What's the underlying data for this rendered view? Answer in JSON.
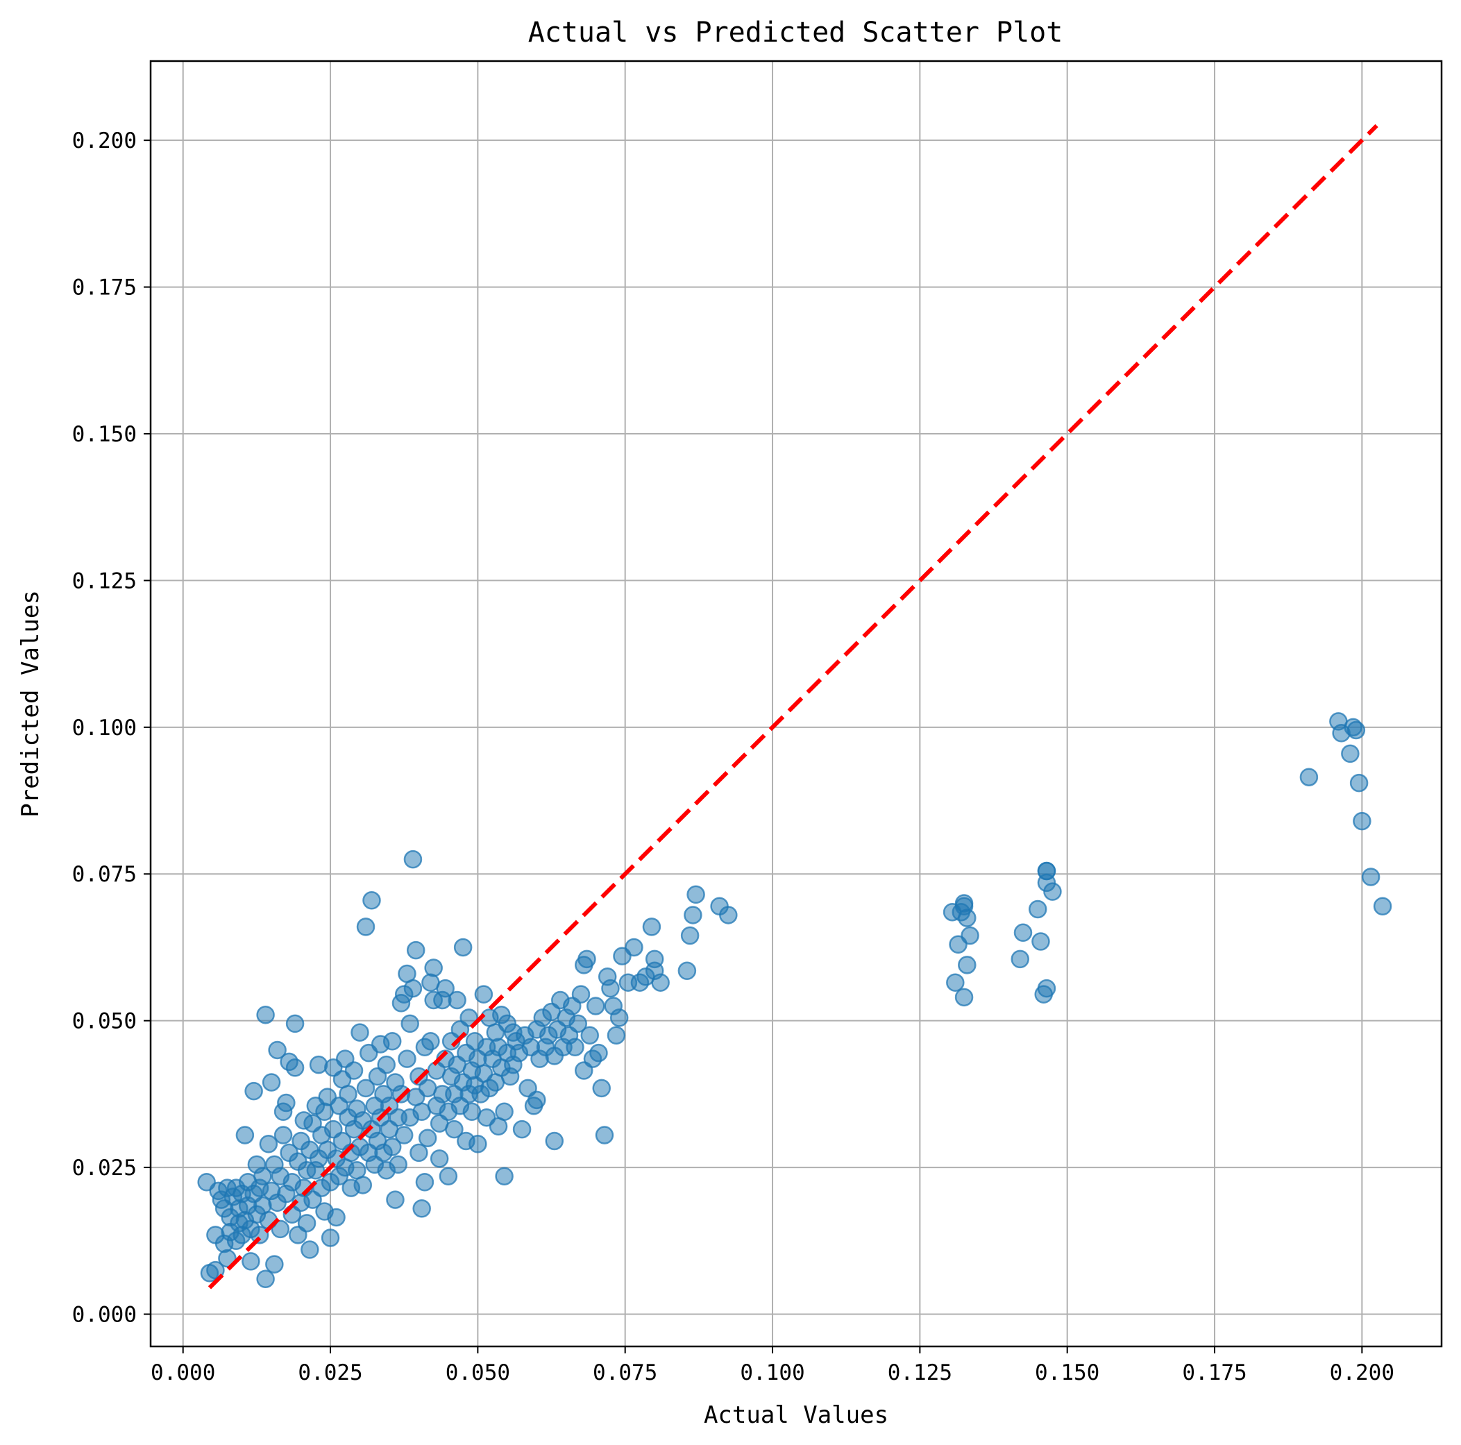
{
  "chart_data": {
    "type": "scatter",
    "title": "Actual vs Predicted Scatter Plot",
    "xlabel": "Actual Values",
    "ylabel": "Predicted Values",
    "xlim": [
      -0.0055,
      0.2135
    ],
    "ylim": [
      -0.0055,
      0.2135
    ],
    "xticks": [
      0.0,
      0.025,
      0.05,
      0.075,
      0.1,
      0.125,
      0.15,
      0.175,
      0.2
    ],
    "yticks": [
      0.0,
      0.025,
      0.05,
      0.075,
      0.1,
      0.125,
      0.15,
      0.175,
      0.2
    ],
    "xtick_labels": [
      "0.000",
      "0.025",
      "0.050",
      "0.075",
      "0.100",
      "0.125",
      "0.150",
      "0.175",
      "0.200"
    ],
    "ytick_labels": [
      "0.000",
      "0.025",
      "0.050",
      "0.075",
      "0.100",
      "0.125",
      "0.150",
      "0.175",
      "0.200"
    ],
    "grid": true,
    "point_color": "#1f77b4",
    "point_alpha": 0.5,
    "reference_line": {
      "x": [
        0.0045,
        0.2025
      ],
      "y": [
        0.0045,
        0.2025
      ],
      "color": "#ff0000",
      "style": "dashed"
    },
    "series": [
      {
        "points": [
          [
            0.004,
            0.0225
          ],
          [
            0.0045,
            0.007
          ],
          [
            0.0055,
            0.0075
          ],
          [
            0.0055,
            0.0135
          ],
          [
            0.006,
            0.021
          ],
          [
            0.0065,
            0.0195
          ],
          [
            0.007,
            0.012
          ],
          [
            0.007,
            0.018
          ],
          [
            0.0075,
            0.0215
          ],
          [
            0.0075,
            0.0095
          ],
          [
            0.008,
            0.014
          ],
          [
            0.008,
            0.0165
          ],
          [
            0.0085,
            0.02
          ],
          [
            0.009,
            0.0125
          ],
          [
            0.009,
            0.0215
          ],
          [
            0.0095,
            0.0155
          ],
          [
            0.0095,
            0.018
          ],
          [
            0.01,
            0.0135
          ],
          [
            0.01,
            0.0205
          ],
          [
            0.0105,
            0.0305
          ],
          [
            0.0105,
            0.016
          ],
          [
            0.011,
            0.0225
          ],
          [
            0.011,
            0.0185
          ],
          [
            0.0115,
            0.0145
          ],
          [
            0.0115,
            0.009
          ],
          [
            0.012,
            0.038
          ],
          [
            0.012,
            0.0205
          ],
          [
            0.0125,
            0.017
          ],
          [
            0.0125,
            0.0255
          ],
          [
            0.013,
            0.0215
          ],
          [
            0.013,
            0.0135
          ],
          [
            0.0135,
            0.0185
          ],
          [
            0.0135,
            0.0235
          ],
          [
            0.014,
            0.051
          ],
          [
            0.014,
            0.006
          ],
          [
            0.0145,
            0.029
          ],
          [
            0.0145,
            0.016
          ],
          [
            0.015,
            0.0395
          ],
          [
            0.015,
            0.021
          ],
          [
            0.0155,
            0.0085
          ],
          [
            0.0155,
            0.0255
          ],
          [
            0.016,
            0.045
          ],
          [
            0.016,
            0.019
          ],
          [
            0.0165,
            0.0145
          ],
          [
            0.0165,
            0.0235
          ],
          [
            0.017,
            0.0305
          ],
          [
            0.017,
            0.0345
          ],
          [
            0.0175,
            0.036
          ],
          [
            0.0175,
            0.0205
          ],
          [
            0.018,
            0.0275
          ],
          [
            0.018,
            0.043
          ],
          [
            0.0185,
            0.017
          ],
          [
            0.0185,
            0.0225
          ],
          [
            0.019,
            0.042
          ],
          [
            0.019,
            0.0495
          ],
          [
            0.0195,
            0.026
          ],
          [
            0.0195,
            0.0135
          ],
          [
            0.02,
            0.0295
          ],
          [
            0.02,
            0.019
          ],
          [
            0.0205,
            0.033
          ],
          [
            0.0205,
            0.0215
          ],
          [
            0.021,
            0.0245
          ],
          [
            0.021,
            0.0155
          ],
          [
            0.0215,
            0.028
          ],
          [
            0.0215,
            0.011
          ],
          [
            0.022,
            0.0325
          ],
          [
            0.022,
            0.0195
          ],
          [
            0.0225,
            0.0355
          ],
          [
            0.0225,
            0.0245
          ],
          [
            0.023,
            0.0265
          ],
          [
            0.023,
            0.0425
          ],
          [
            0.0235,
            0.0215
          ],
          [
            0.0235,
            0.0305
          ],
          [
            0.024,
            0.0345
          ],
          [
            0.024,
            0.0175
          ],
          [
            0.0245,
            0.028
          ],
          [
            0.0245,
            0.037
          ],
          [
            0.025,
            0.0225
          ],
          [
            0.025,
            0.013
          ],
          [
            0.0255,
            0.0315
          ],
          [
            0.0255,
            0.042
          ],
          [
            0.026,
            0.0265
          ],
          [
            0.026,
            0.0165
          ],
          [
            0.0265,
            0.0355
          ],
          [
            0.0265,
            0.0235
          ],
          [
            0.027,
            0.0295
          ],
          [
            0.027,
            0.04
          ],
          [
            0.0275,
            0.0435
          ],
          [
            0.0275,
            0.025
          ],
          [
            0.028,
            0.0335
          ],
          [
            0.028,
            0.0375
          ],
          [
            0.0285,
            0.0275
          ],
          [
            0.0285,
            0.0215
          ],
          [
            0.029,
            0.0315
          ],
          [
            0.029,
            0.0415
          ],
          [
            0.0295,
            0.0245
          ],
          [
            0.0295,
            0.035
          ],
          [
            0.03,
            0.048
          ],
          [
            0.03,
            0.0285
          ],
          [
            0.0305,
            0.033
          ],
          [
            0.0305,
            0.022
          ],
          [
            0.031,
            0.066
          ],
          [
            0.031,
            0.0385
          ],
          [
            0.0315,
            0.0275
          ],
          [
            0.0315,
            0.0445
          ],
          [
            0.032,
            0.0705
          ],
          [
            0.032,
            0.0315
          ],
          [
            0.0325,
            0.0355
          ],
          [
            0.0325,
            0.0255
          ],
          [
            0.033,
            0.0405
          ],
          [
            0.033,
            0.0295
          ],
          [
            0.0335,
            0.046
          ],
          [
            0.0335,
            0.0335
          ],
          [
            0.034,
            0.0275
          ],
          [
            0.034,
            0.0375
          ],
          [
            0.0345,
            0.0245
          ],
          [
            0.0345,
            0.0425
          ],
          [
            0.035,
            0.0315
          ],
          [
            0.035,
            0.0355
          ],
          [
            0.0355,
            0.0465
          ],
          [
            0.0355,
            0.0285
          ],
          [
            0.036,
            0.0195
          ],
          [
            0.036,
            0.0395
          ],
          [
            0.0365,
            0.0335
          ],
          [
            0.0365,
            0.0255
          ],
          [
            0.037,
            0.053
          ],
          [
            0.037,
            0.0375
          ],
          [
            0.0375,
            0.0545
          ],
          [
            0.0375,
            0.0305
          ],
          [
            0.038,
            0.058
          ],
          [
            0.038,
            0.0435
          ],
          [
            0.0385,
            0.0495
          ],
          [
            0.0385,
            0.0335
          ],
          [
            0.039,
            0.0775
          ],
          [
            0.039,
            0.0555
          ],
          [
            0.0395,
            0.062
          ],
          [
            0.0395,
            0.037
          ],
          [
            0.04,
            0.0405
          ],
          [
            0.04,
            0.0275
          ],
          [
            0.0405,
            0.018
          ],
          [
            0.0405,
            0.0345
          ],
          [
            0.041,
            0.0455
          ],
          [
            0.041,
            0.0225
          ],
          [
            0.0415,
            0.0385
          ],
          [
            0.0415,
            0.03
          ],
          [
            0.042,
            0.0565
          ],
          [
            0.042,
            0.0465
          ],
          [
            0.0425,
            0.059
          ],
          [
            0.0425,
            0.0535
          ],
          [
            0.043,
            0.0355
          ],
          [
            0.043,
            0.0415
          ],
          [
            0.0435,
            0.0325
          ],
          [
            0.0435,
            0.0265
          ],
          [
            0.044,
            0.0535
          ],
          [
            0.044,
            0.0375
          ],
          [
            0.0445,
            0.0555
          ],
          [
            0.0445,
            0.0435
          ],
          [
            0.045,
            0.0345
          ],
          [
            0.045,
            0.0235
          ],
          [
            0.0455,
            0.0405
          ],
          [
            0.0455,
            0.0465
          ],
          [
            0.046,
            0.0375
          ],
          [
            0.046,
            0.0315
          ],
          [
            0.0465,
            0.0535
          ],
          [
            0.0465,
            0.0425
          ],
          [
            0.047,
            0.0485
          ],
          [
            0.047,
            0.0355
          ],
          [
            0.0475,
            0.0625
          ],
          [
            0.0475,
            0.0395
          ],
          [
            0.048,
            0.0445
          ],
          [
            0.048,
            0.0295
          ],
          [
            0.0485,
            0.0375
          ],
          [
            0.0485,
            0.0505
          ],
          [
            0.049,
            0.0415
          ],
          [
            0.049,
            0.0345
          ],
          [
            0.0495,
            0.0465
          ],
          [
            0.0495,
            0.039
          ],
          [
            0.05,
            0.0435
          ],
          [
            0.05,
            0.029
          ],
          [
            0.0505,
            0.0375
          ],
          [
            0.051,
            0.0545
          ],
          [
            0.051,
            0.041
          ],
          [
            0.0515,
            0.0455
          ],
          [
            0.0515,
            0.0335
          ],
          [
            0.052,
            0.0505
          ],
          [
            0.052,
            0.0385
          ],
          [
            0.0525,
            0.0435
          ],
          [
            0.053,
            0.048
          ],
          [
            0.053,
            0.0395
          ],
          [
            0.0535,
            0.032
          ],
          [
            0.0535,
            0.0455
          ],
          [
            0.054,
            0.051
          ],
          [
            0.054,
            0.042
          ],
          [
            0.0545,
            0.0345
          ],
          [
            0.0545,
            0.0235
          ],
          [
            0.055,
            0.0495
          ],
          [
            0.055,
            0.0445
          ],
          [
            0.0555,
            0.0405
          ],
          [
            0.056,
            0.048
          ],
          [
            0.056,
            0.0425
          ],
          [
            0.0565,
            0.0465
          ],
          [
            0.057,
            0.0445
          ],
          [
            0.0575,
            0.0315
          ],
          [
            0.058,
            0.0475
          ],
          [
            0.0585,
            0.0385
          ],
          [
            0.059,
            0.0455
          ],
          [
            0.0595,
            0.0355
          ],
          [
            0.06,
            0.0365
          ],
          [
            0.06,
            0.0485
          ],
          [
            0.0605,
            0.0435
          ],
          [
            0.061,
            0.0505
          ],
          [
            0.0615,
            0.0455
          ],
          [
            0.062,
            0.0475
          ],
          [
            0.0625,
            0.0515
          ],
          [
            0.063,
            0.0295
          ],
          [
            0.063,
            0.044
          ],
          [
            0.0635,
            0.0485
          ],
          [
            0.064,
            0.0535
          ],
          [
            0.0645,
            0.0455
          ],
          [
            0.065,
            0.0505
          ],
          [
            0.0655,
            0.0475
          ],
          [
            0.066,
            0.0525
          ],
          [
            0.0665,
            0.0455
          ],
          [
            0.067,
            0.0495
          ],
          [
            0.0675,
            0.0545
          ],
          [
            0.068,
            0.0415
          ],
          [
            0.068,
            0.0595
          ],
          [
            0.0685,
            0.0605
          ],
          [
            0.069,
            0.0475
          ],
          [
            0.0695,
            0.0435
          ],
          [
            0.07,
            0.0525
          ],
          [
            0.0705,
            0.0445
          ],
          [
            0.071,
            0.0385
          ],
          [
            0.0715,
            0.0305
          ],
          [
            0.072,
            0.0575
          ],
          [
            0.0725,
            0.0555
          ],
          [
            0.073,
            0.0525
          ],
          [
            0.0735,
            0.0475
          ],
          [
            0.074,
            0.0505
          ],
          [
            0.0745,
            0.061
          ],
          [
            0.0755,
            0.0565
          ],
          [
            0.0765,
            0.0625
          ],
          [
            0.0775,
            0.0565
          ],
          [
            0.0785,
            0.0575
          ],
          [
            0.0795,
            0.066
          ],
          [
            0.08,
            0.0605
          ],
          [
            0.08,
            0.0585
          ],
          [
            0.081,
            0.0565
          ],
          [
            0.0855,
            0.0585
          ],
          [
            0.086,
            0.0645
          ],
          [
            0.0865,
            0.068
          ],
          [
            0.087,
            0.0715
          ],
          [
            0.091,
            0.0695
          ],
          [
            0.0925,
            0.068
          ],
          [
            0.1305,
            0.0685
          ],
          [
            0.131,
            0.0565
          ],
          [
            0.1315,
            0.063
          ],
          [
            0.132,
            0.0685
          ],
          [
            0.1325,
            0.054
          ],
          [
            0.1325,
            0.0695
          ],
          [
            0.1325,
            0.07
          ],
          [
            0.133,
            0.0675
          ],
          [
            0.133,
            0.0595
          ],
          [
            0.1335,
            0.0645
          ],
          [
            0.142,
            0.0605
          ],
          [
            0.1425,
            0.065
          ],
          [
            0.145,
            0.069
          ],
          [
            0.1455,
            0.0635
          ],
          [
            0.146,
            0.0545
          ],
          [
            0.1465,
            0.0555
          ],
          [
            0.1465,
            0.0735
          ],
          [
            0.1465,
            0.0755
          ],
          [
            0.1465,
            0.0755
          ],
          [
            0.1475,
            0.072
          ],
          [
            0.191,
            0.0915
          ],
          [
            0.196,
            0.101
          ],
          [
            0.1965,
            0.099
          ],
          [
            0.198,
            0.0955
          ],
          [
            0.1985,
            0.1
          ],
          [
            0.199,
            0.0995
          ],
          [
            0.1995,
            0.0905
          ],
          [
            0.2,
            0.084
          ],
          [
            0.2015,
            0.0745
          ],
          [
            0.2035,
            0.0695
          ]
        ]
      }
    ]
  }
}
